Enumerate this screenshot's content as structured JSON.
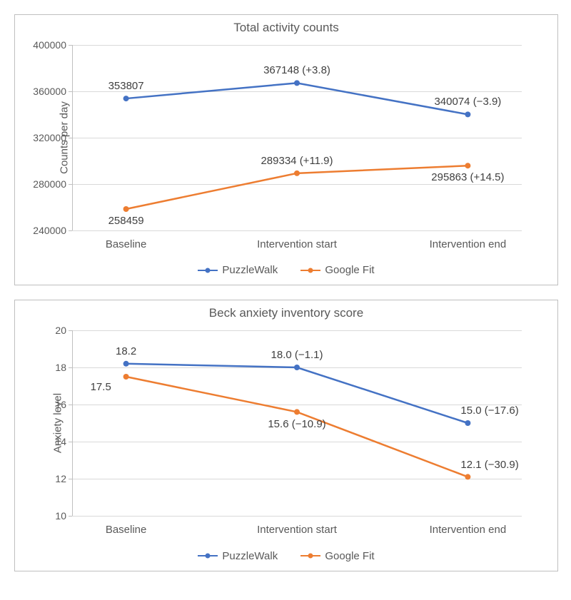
{
  "chart1": {
    "type": "line",
    "title": "Total activity counts",
    "ylabel": "Counts per day",
    "ylim": [
      240000,
      400000
    ],
    "ytick_step": 40000,
    "yticks": [
      240000,
      280000,
      320000,
      360000,
      400000
    ],
    "categories": [
      "Baseline",
      "Intervention start",
      "Intervention end"
    ],
    "series": [
      {
        "name": "PuzzleWalk",
        "color": "#4472c4",
        "values": [
          353807,
          367148,
          340074
        ],
        "labels": [
          "353807",
          "367148 (+3.8)",
          "340074 (−3.9)"
        ],
        "label_pos": [
          "above",
          "above",
          "above"
        ]
      },
      {
        "name": "Google Fit",
        "color": "#ed7d31",
        "values": [
          258459,
          289334,
          295863
        ],
        "labels": [
          "258459",
          "289334 (+11.9)",
          "295863 (+14.5)"
        ],
        "label_pos": [
          "below",
          "above",
          "below"
        ]
      }
    ],
    "line_width": 2.5,
    "marker_radius": 4,
    "title_fontsize": 17,
    "label_fontsize": 15,
    "background_color": "#ffffff",
    "grid_color": "#d9d9d9",
    "border_color": "#bfbfbf"
  },
  "chart2": {
    "type": "line",
    "title": "Beck anxiety inventory score",
    "ylabel": "Anxiety level",
    "ylim": [
      10,
      20
    ],
    "ytick_step": 2,
    "yticks": [
      10,
      12,
      14,
      16,
      18,
      20
    ],
    "categories": [
      "Baseline",
      "Intervention start",
      "Intervention end"
    ],
    "series": [
      {
        "name": "PuzzleWalk",
        "color": "#4472c4",
        "values": [
          18.2,
          18.0,
          15.0
        ],
        "labels": [
          "18.2",
          "18.0 (−1.1)",
          "15.0 (−17.6)"
        ],
        "label_pos": [
          "above",
          "above",
          "above-right"
        ]
      },
      {
        "name": "Google Fit",
        "color": "#ed7d31",
        "values": [
          17.5,
          15.6,
          12.1
        ],
        "labels": [
          "17.5",
          "15.6 (−10.9)",
          "12.1 (−30.9)"
        ],
        "label_pos": [
          "below-left",
          "below",
          "above-right"
        ]
      }
    ],
    "line_width": 2.5,
    "marker_radius": 4,
    "title_fontsize": 17,
    "label_fontsize": 15,
    "background_color": "#ffffff",
    "grid_color": "#d9d9d9",
    "border_color": "#bfbfbf"
  },
  "legend": {
    "items": [
      {
        "name": "PuzzleWalk",
        "color": "#4472c4"
      },
      {
        "name": "Google Fit",
        "color": "#ed7d31"
      }
    ]
  }
}
